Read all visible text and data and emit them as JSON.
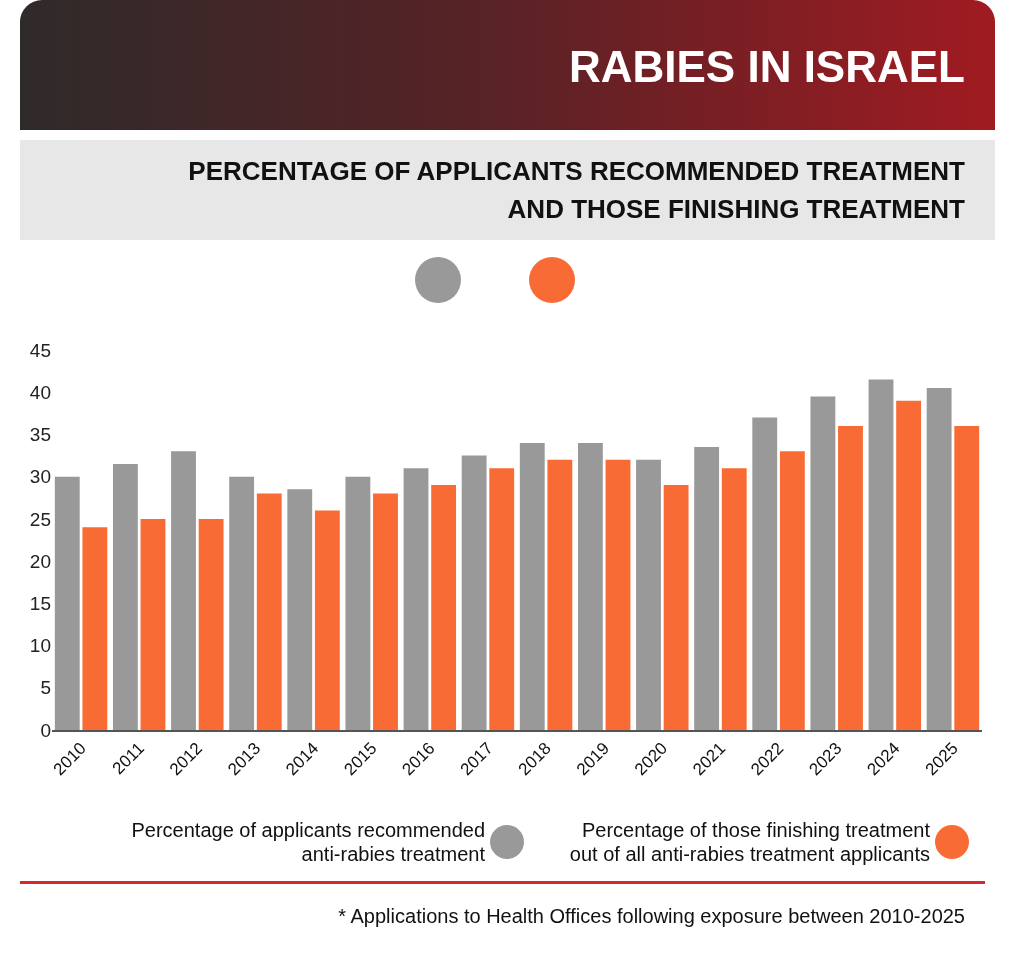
{
  "chart_data": {
    "type": "bar",
    "title": "RABIES IN ISRAEL",
    "subtitle": "PERCENTAGE OF APPLICANTS RECOMMENDED TREATMENT AND THOSE FINISHING TREATMENT",
    "categories": [
      "2010",
      "2011",
      "2012",
      "2013",
      "2014",
      "2015",
      "2016",
      "2017",
      "2018",
      "2019",
      "2020",
      "2021",
      "2022",
      "2023",
      "2024",
      "2025"
    ],
    "series": [
      {
        "name": "Percentage of applicants recommended anti-rabies treatment",
        "color": "#999999",
        "values": [
          30,
          31.5,
          33,
          30,
          28.5,
          30,
          31,
          32.5,
          34,
          34,
          32,
          33.5,
          37,
          39.5,
          41.5,
          40.5
        ]
      },
      {
        "name": "Percentage of those finishing treatment out of all anti-rabies treatment applicants",
        "color": "#f96b35",
        "values": [
          24,
          25,
          25,
          28,
          26,
          28,
          29,
          31,
          32,
          32,
          29,
          31,
          33,
          36,
          39,
          36
        ]
      }
    ],
    "ylim": [
      0,
      45
    ],
    "yticks": [
      0,
      5,
      10,
      15,
      20,
      25,
      30,
      35,
      40,
      45
    ],
    "legend": "bottom",
    "annotations": [
      "* Applications to Health Offices following exposure between 2010-2025"
    ]
  }
}
